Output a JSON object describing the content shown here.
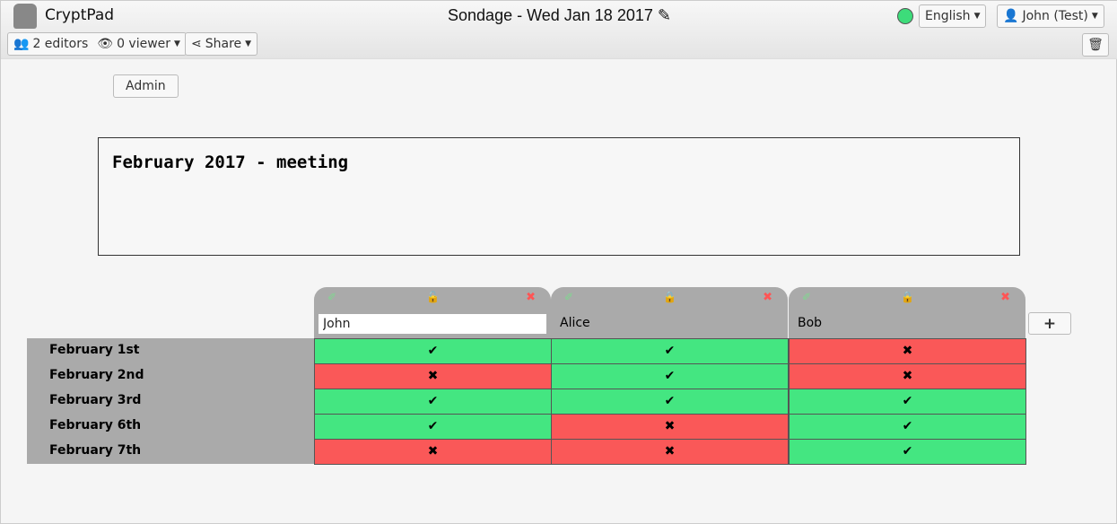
{
  "app": {
    "name": "CryptPad",
    "title": "Sondage - Wed Jan 18 2017",
    "edit_icon": "pencil-icon"
  },
  "toolbar": {
    "editors": "2 editors",
    "viewers": "0 viewer",
    "share": "Share",
    "language": "English",
    "user": "John (Test)",
    "status_color": "#3ddc7a"
  },
  "admin_label": "Admin",
  "description": "February 2017 - meeting",
  "colors": {
    "yes": "#44e681",
    "no": "#fa5858",
    "header": "#aaaaaa"
  },
  "columns": [
    {
      "name": "John",
      "editable": true,
      "locked": false
    },
    {
      "name": "Alice",
      "editable": false,
      "locked": true
    },
    {
      "name": "Bob",
      "editable": false,
      "locked": true
    }
  ],
  "rows": [
    {
      "label": "February 1st",
      "values": [
        true,
        true,
        false
      ]
    },
    {
      "label": "February 2nd",
      "values": [
        false,
        true,
        false
      ]
    },
    {
      "label": "February 3rd",
      "values": [
        true,
        true,
        true
      ]
    },
    {
      "label": "February 6th",
      "values": [
        true,
        false,
        true
      ]
    },
    {
      "label": "February 7th",
      "values": [
        false,
        false,
        true
      ]
    }
  ],
  "add_column_label": "+",
  "marks": {
    "yes": "✔",
    "no": "✖"
  }
}
